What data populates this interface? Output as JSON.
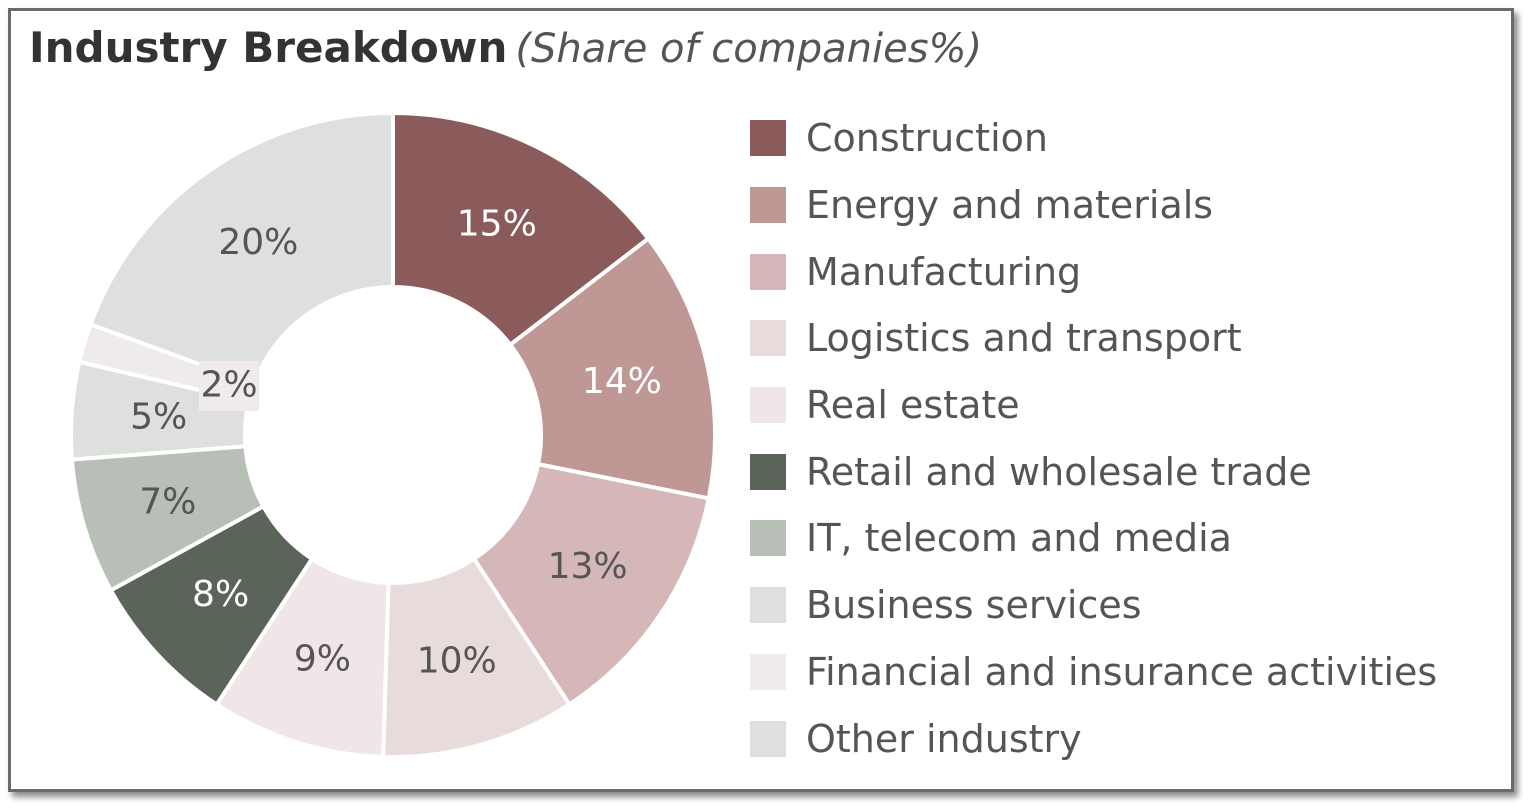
{
  "chart_data": {
    "type": "pie",
    "title": "Industry Breakdown",
    "subtitle": "(Share of companies%)",
    "legend_position": "right",
    "categories": [
      "Construction",
      "Energy and materials",
      "Manufacturing",
      "Logistics and transport",
      "Real estate",
      "Retail and wholesale trade",
      "IT, telecom and media",
      "Business services",
      "Financial and insurance activities",
      "Other industry"
    ],
    "values": [
      15,
      14,
      13,
      10,
      9,
      8,
      7,
      5,
      2,
      20
    ],
    "labels": [
      "15%",
      "14%",
      "13%",
      "10%",
      "9%",
      "8%",
      "7%",
      "5%",
      "2%",
      "20%"
    ],
    "colors": [
      "#8b5a5a",
      "#bf9795",
      "#d5b7b8",
      "#e8dbdc",
      "#f0e6e7",
      "#5a6459",
      "#b8bfb7",
      "#dde0dd",
      "#efebeb",
      "#dde0de"
    ],
    "label_colors": [
      "#ffffff",
      "#ffffff",
      "#555555",
      "#555555",
      "#555555",
      "#ffffff",
      "#555555",
      "#555555",
      "#555555",
      "#555555"
    ]
  }
}
